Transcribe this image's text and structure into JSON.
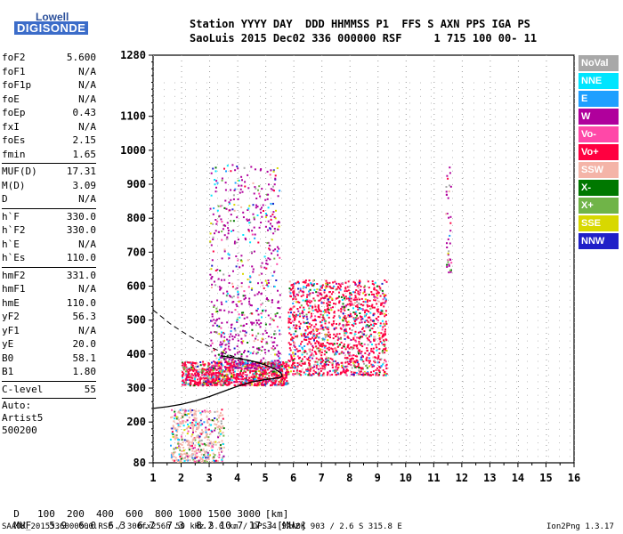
{
  "logo": {
    "line1": "Lowell",
    "line2": "DIGISONDE"
  },
  "header": {
    "line1": "Station YYYY DAY  DDD HHMMSS P1  FFS S AXN PPS IGA PS",
    "line2": "SaoLuis 2015 Dec02 336 000000 RSF     1 715 100 00- 11"
  },
  "params": {
    "group1": [
      {
        "name": "foF2",
        "value": "5.600"
      },
      {
        "name": "foF1",
        "value": "N/A"
      },
      {
        "name": "foF1p",
        "value": "N/A"
      },
      {
        "name": "foE",
        "value": "N/A"
      },
      {
        "name": "foEp",
        "value": "0.43"
      },
      {
        "name": "fxI",
        "value": "N/A"
      },
      {
        "name": "foEs",
        "value": "2.15"
      },
      {
        "name": "fmin",
        "value": "1.65"
      }
    ],
    "group2": [
      {
        "name": "MUF(D)",
        "value": "17.31"
      },
      {
        "name": "M(D)",
        "value": "3.09"
      },
      {
        "name": "D",
        "value": "N/A"
      }
    ],
    "group3": [
      {
        "name": "h`F",
        "value": "330.0"
      },
      {
        "name": "h`F2",
        "value": "330.0"
      },
      {
        "name": "h`E",
        "value": "N/A"
      },
      {
        "name": "h`Es",
        "value": "110.0"
      }
    ],
    "group4": [
      {
        "name": "hmF2",
        "value": "331.0"
      },
      {
        "name": "hmF1",
        "value": "N/A"
      },
      {
        "name": "hmE",
        "value": "110.0"
      },
      {
        "name": "yF2",
        "value": "56.3"
      },
      {
        "name": "yF1",
        "value": "N/A"
      },
      {
        "name": "yE",
        "value": "20.0"
      },
      {
        "name": "B0",
        "value": "58.1"
      },
      {
        "name": "B1",
        "value": "1.80"
      }
    ],
    "group5": [
      {
        "name": "C-level",
        "value": "55"
      }
    ],
    "auto": [
      "Auto:",
      "Artist5",
      "500200"
    ]
  },
  "legend": [
    {
      "label": "NoVal",
      "color": "#a8a8a8"
    },
    {
      "label": "NNE",
      "color": "#00e5ff"
    },
    {
      "label": "E",
      "color": "#1e9fff"
    },
    {
      "label": "W",
      "color": "#b0009c"
    },
    {
      "label": "Vo-",
      "color": "#ff48a8"
    },
    {
      "label": "Vo+",
      "color": "#ff0040"
    },
    {
      "label": "SSW",
      "color": "#f4b4a8"
    },
    {
      "label": "X-",
      "color": "#007800"
    },
    {
      "label": "X+",
      "color": "#70b448"
    },
    {
      "label": "SSE",
      "color": "#d8d800"
    },
    {
      "label": "NNW",
      "color": "#2020c8"
    }
  ],
  "chart_data": {
    "type": "scatter",
    "xlim": [
      1,
      16
    ],
    "ylim": [
      80,
      1280
    ],
    "xticks": [
      1,
      2,
      3,
      4,
      5,
      6,
      7,
      8,
      9,
      10,
      11,
      12,
      13,
      14,
      15,
      16
    ],
    "yticks": [
      80,
      200,
      300,
      400,
      500,
      600,
      700,
      800,
      900,
      1000,
      1100,
      1280
    ],
    "grid": true,
    "xlabel": "",
    "ylabel": "",
    "trace_solid": {
      "x": [
        1.0,
        1.5,
        2.0,
        2.5,
        3.0,
        3.5,
        4.0,
        4.5,
        5.0,
        5.3,
        5.5,
        5.6,
        5.55,
        5.3,
        5.0,
        4.6,
        4.2,
        3.8,
        3.4
      ],
      "y": [
        240,
        245,
        252,
        262,
        275,
        290,
        305,
        318,
        325,
        328,
        331,
        335,
        345,
        358,
        368,
        378,
        385,
        390,
        395
      ]
    },
    "trace_dashed": {
      "x": [
        1.0,
        1.3,
        1.6,
        2.0,
        2.4,
        2.8,
        3.2,
        3.6,
        4.0,
        4.5,
        5.0
      ],
      "y": [
        530,
        510,
        490,
        468,
        448,
        430,
        415,
        400,
        390,
        380,
        372
      ]
    },
    "echo_regions": [
      {
        "freq": [
          2.0,
          5.8
        ],
        "height": [
          310,
          380
        ],
        "dominant": "Vo+"
      },
      {
        "freq": [
          5.8,
          9.3
        ],
        "height": [
          340,
          620
        ],
        "dominant": "Vo+"
      },
      {
        "freq": [
          3.0,
          5.5
        ],
        "height": [
          360,
          960
        ],
        "dominant": "W"
      },
      {
        "freq": [
          1.6,
          3.5
        ],
        "height": [
          85,
          240
        ],
        "dominant": "SSW"
      },
      {
        "freq": [
          11.4,
          11.6
        ],
        "height": [
          640,
          980
        ],
        "dominant": "W"
      }
    ]
  },
  "bottom_table": {
    "d_label": "D",
    "d_values": [
      "100",
      "200",
      "400",
      "600",
      "800",
      "1000",
      "1500",
      "3000"
    ],
    "d_unit": "[km]",
    "muf_label": "MUF",
    "muf_values": [
      "5.9",
      "6.0",
      "6.3",
      "6.7",
      "7.3",
      "8.2",
      "10.7",
      "17.3"
    ],
    "muf_unit": "[MHz]"
  },
  "footer": {
    "left": "SAA0K_2015336000000.RSF / 300fx256h 50 kHz 5.0 km / DPS-4 SAA0K 903 / 2.6 S 315.8 E",
    "right": "Ion2Png 1.3.17"
  }
}
